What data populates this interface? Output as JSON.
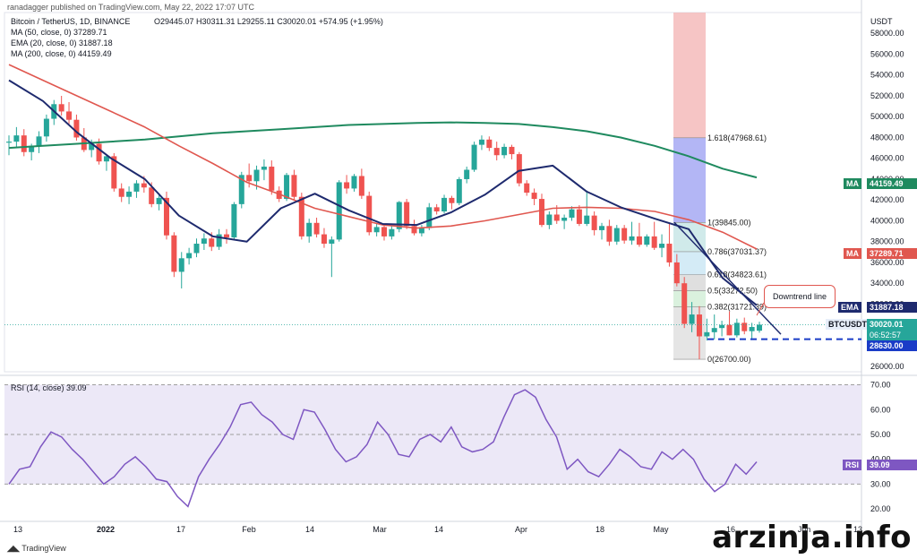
{
  "header": {
    "published": "ranadagger published on TradingView.com, May 22, 2022 17:07 UTC",
    "symbol": "Bitcoin / TetherUS, 1D, BINANCE",
    "ohlc": "O29445.07 H30311.31 L29255.11 C30020.01 +574.95 (+1.95%)",
    "currency": "USDT"
  },
  "legend": {
    "ma50": "MA (50, close, 0) 37289.71",
    "ema20": "EMA (20, close, 0) 31887.18",
    "ma200": "MA (200, close, 0) 44159.49",
    "rsi": "RSI (14, close) 39.09"
  },
  "tags": {
    "ma200_label": "MA",
    "ma200_value": "44159.49",
    "ma50_label": "MA",
    "ma50_value": "37289.71",
    "ema_label": "EMA",
    "ema_value": "31887.18",
    "pair_label": "BTCUSDT",
    "price_value": "30020.01",
    "countdown": "06:52:57",
    "support_value": "28630.00",
    "rsi_label": "RSI",
    "rsi_value": "39.09"
  },
  "fib_labels": [
    "1.618(47968.61)",
    "1(39845.00)",
    "0.786(37031.37)",
    "0.618(34823.61)",
    "0.5(33272.50)",
    "0.382(31721.39)",
    "0(26700.00)"
  ],
  "callout": "Downtrend line",
  "branding": {
    "tradingview": "TradingView",
    "watermark": "arzinja.info"
  },
  "colors": {
    "up": "#26a69a",
    "down": "#ef5350",
    "ma50": "#e0574f",
    "ema20": "#1e2a6e",
    "ma200": "#1f8a5f",
    "rsi": "#7e57c2",
    "support": "#1a3cc7",
    "fib_red": "#f4b6b6",
    "fib_blue": "#b3b6f5"
  },
  "chart_data": {
    "type": "candlestick",
    "price_axis": {
      "ticks": [
        26000,
        28000,
        30000,
        32000,
        34000,
        36000,
        38000,
        40000,
        42000,
        44000,
        46000,
        48000,
        50000,
        52000,
        54000,
        56000,
        58000
      ],
      "ylim": [
        25500,
        60000
      ]
    },
    "x_ticks": [
      "13",
      "2022",
      "17",
      "Feb",
      "14",
      "Mar",
      "14",
      "Apr",
      "18",
      "May",
      "16",
      "Jun",
      "13"
    ],
    "rsi_axis": {
      "ticks": [
        20,
        30,
        40,
        50,
        60,
        70
      ],
      "overbought": 70,
      "oversold": 30
    },
    "ohlc": [
      [
        47500,
        48200,
        46300,
        47600
      ],
      [
        47600,
        49000,
        47000,
        48200
      ],
      [
        48200,
        48800,
        46200,
        46600
      ],
      [
        46600,
        47400,
        45800,
        47200
      ],
      [
        47200,
        48600,
        46500,
        48100
      ],
      [
        48100,
        50200,
        47600,
        49800
      ],
      [
        49800,
        51600,
        49200,
        51200
      ],
      [
        51200,
        52000,
        50100,
        50500
      ],
      [
        50500,
        51400,
        49300,
        49700
      ],
      [
        49700,
        50200,
        47700,
        48000
      ],
      [
        48000,
        48900,
        46600,
        46800
      ],
      [
        46800,
        47800,
        46100,
        47400
      ],
      [
        47400,
        47900,
        45400,
        45700
      ],
      [
        45700,
        46400,
        44800,
        46200
      ],
      [
        46200,
        46500,
        42800,
        43100
      ],
      [
        43100,
        43600,
        41800,
        42300
      ],
      [
        42300,
        43300,
        41600,
        42800
      ],
      [
        42800,
        43900,
        42200,
        43600
      ],
      [
        43600,
        44300,
        42700,
        43200
      ],
      [
        43200,
        43700,
        41300,
        41600
      ],
      [
        41600,
        42500,
        41000,
        42200
      ],
      [
        42200,
        42800,
        38200,
        38600
      ],
      [
        38600,
        38900,
        34600,
        35100
      ],
      [
        35100,
        37000,
        33500,
        36400
      ],
      [
        36400,
        37400,
        35800,
        36900
      ],
      [
        36900,
        38300,
        36500,
        37800
      ],
      [
        37800,
        38800,
        37200,
        38300
      ],
      [
        38300,
        38900,
        37100,
        37500
      ],
      [
        37500,
        39200,
        37200,
        38700
      ],
      [
        38700,
        39200,
        37800,
        38400
      ],
      [
        38400,
        41800,
        38200,
        41600
      ],
      [
        41600,
        44700,
        41200,
        44400
      ],
      [
        44400,
        45500,
        43200,
        43800
      ],
      [
        43800,
        45300,
        43000,
        44900
      ],
      [
        44900,
        45900,
        43900,
        45200
      ],
      [
        45200,
        45800,
        42500,
        42900
      ],
      [
        42900,
        43300,
        41800,
        42100
      ],
      [
        42100,
        44600,
        41900,
        44400
      ],
      [
        44400,
        44900,
        42000,
        42300
      ],
      [
        42300,
        42700,
        38200,
        38500
      ],
      [
        38500,
        40200,
        37900,
        39800
      ],
      [
        39800,
        40300,
        38400,
        38700
      ],
      [
        38700,
        39300,
        37400,
        37800
      ],
      [
        37800,
        38500,
        34600,
        38200
      ],
      [
        38200,
        43900,
        38000,
        43700
      ],
      [
        43700,
        44400,
        42600,
        43100
      ],
      [
        43100,
        44500,
        42800,
        44300
      ],
      [
        44300,
        45000,
        42100,
        42400
      ],
      [
        42400,
        42800,
        38600,
        38900
      ],
      [
        38900,
        39700,
        38500,
        39400
      ],
      [
        39400,
        39600,
        38100,
        38500
      ],
      [
        38500,
        39500,
        38200,
        39200
      ],
      [
        39200,
        41900,
        38900,
        41800
      ],
      [
        41800,
        42100,
        39200,
        39500
      ],
      [
        39500,
        40100,
        38600,
        38800
      ],
      [
        38800,
        39600,
        38500,
        39300
      ],
      [
        39300,
        41700,
        39100,
        41300
      ],
      [
        41300,
        41600,
        40600,
        40900
      ],
      [
        40900,
        42500,
        40700,
        42200
      ],
      [
        42200,
        42400,
        41100,
        41700
      ],
      [
        41700,
        44200,
        41500,
        44000
      ],
      [
        44000,
        45200,
        43600,
        44900
      ],
      [
        44900,
        47600,
        44700,
        47300
      ],
      [
        47300,
        48200,
        46800,
        47800
      ],
      [
        47800,
        48100,
        46700,
        47000
      ],
      [
        47000,
        47600,
        45800,
        46300
      ],
      [
        46300,
        47400,
        46000,
        47100
      ],
      [
        47100,
        47300,
        45900,
        46400
      ],
      [
        46400,
        46600,
        43300,
        43600
      ],
      [
        43600,
        43900,
        42400,
        42700
      ],
      [
        42700,
        43100,
        41500,
        42100
      ],
      [
        42100,
        42600,
        39400,
        39600
      ],
      [
        39600,
        40900,
        39200,
        40600
      ],
      [
        40600,
        41500,
        39700,
        40000
      ],
      [
        40000,
        40600,
        39200,
        40300
      ],
      [
        40300,
        41400,
        40000,
        41100
      ],
      [
        41100,
        41500,
        39500,
        39700
      ],
      [
        39700,
        42900,
        39500,
        40500
      ],
      [
        40500,
        40900,
        38600,
        39100
      ],
      [
        39100,
        39800,
        38200,
        39500
      ],
      [
        39500,
        40100,
        37600,
        38000
      ],
      [
        38000,
        39600,
        37700,
        39300
      ],
      [
        39300,
        39600,
        37800,
        38100
      ],
      [
        38100,
        39900,
        37700,
        38500
      ],
      [
        38500,
        39800,
        37500,
        37700
      ],
      [
        37700,
        38700,
        37500,
        38500
      ],
      [
        38500,
        39900,
        37200,
        37400
      ],
      [
        37400,
        38700,
        36500,
        37800
      ],
      [
        37800,
        39800,
        35600,
        36000
      ],
      [
        36000,
        36800,
        33700,
        34000
      ],
      [
        34000,
        34600,
        29700,
        30100
      ],
      [
        30100,
        32200,
        29300,
        31000
      ],
      [
        31000,
        31800,
        26700,
        28900
      ],
      [
        28900,
        30600,
        28500,
        29300
      ],
      [
        29300,
        31000,
        28600,
        29700
      ],
      [
        29700,
        30400,
        28900,
        30000
      ],
      [
        30000,
        31300,
        29000,
        29000
      ],
      [
        29000,
        30600,
        28800,
        30200
      ],
      [
        30200,
        30700,
        29100,
        29400
      ],
      [
        29400,
        30200,
        28700,
        29800
      ],
      [
        29445,
        30311,
        29255,
        30020
      ]
    ],
    "ma200": [
      47000,
      47200,
      47400,
      47600,
      47800,
      48100,
      48400,
      48600,
      48800,
      49000,
      49200,
      49300,
      49400,
      49450,
      49400,
      49300,
      49000,
      48600,
      48000,
      47200,
      46200,
      45000,
      44159
    ],
    "ma50": [
      55000,
      53500,
      52000,
      50500,
      49000,
      47200,
      45500,
      43700,
      42500,
      41200,
      40400,
      39600,
      39300,
      39500,
      40000,
      40600,
      41200,
      41300,
      41200,
      40900,
      40100,
      38900,
      37290
    ],
    "ema20": [
      53500,
      51500,
      48500,
      46000,
      44000,
      40500,
      38500,
      38000,
      41200,
      42600,
      41000,
      39700,
      39600,
      40800,
      42500,
      44800,
      45300,
      42800,
      41300,
      40200,
      39200,
      34500,
      31887
    ],
    "rsi": [
      30,
      36,
      37,
      45,
      51,
      49,
      44,
      40,
      35,
      30,
      33,
      38,
      41,
      37,
      32,
      31,
      25,
      21,
      33,
      40,
      46,
      53,
      62,
      63,
      58,
      55,
      50,
      48,
      60,
      59,
      52,
      44,
      39,
      41,
      46,
      55,
      50,
      42,
      41,
      48,
      50,
      47,
      53,
      45,
      43,
      44,
      47,
      57,
      66,
      68,
      65,
      56,
      49,
      36,
      40,
      35,
      33,
      38,
      44,
      41,
      37,
      36,
      43,
      40,
      44,
      40,
      32,
      27,
      30,
      38,
      34,
      39
    ],
    "support_level": 28630,
    "current_price": 30020.01,
    "fib": [
      {
        "ratio": "1.618",
        "price": 47968.61
      },
      {
        "ratio": "1",
        "price": 39845.0
      },
      {
        "ratio": "0.786",
        "price": 37031.37
      },
      {
        "ratio": "0.618",
        "price": 34823.61
      },
      {
        "ratio": "0.5",
        "price": 33272.5
      },
      {
        "ratio": "0.382",
        "price": 31721.39
      },
      {
        "ratio": "0",
        "price": 26700.0
      }
    ]
  }
}
